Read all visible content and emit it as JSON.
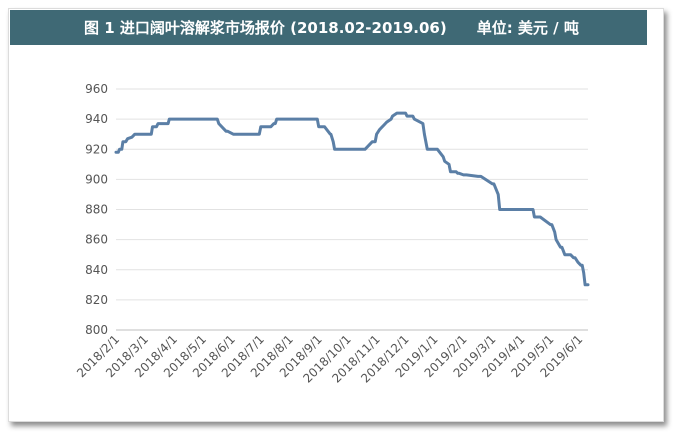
{
  "header": {
    "title": "图 1  进口阔叶溶解浆市场报价 (2018.02-2019.06)",
    "unit": "单位: 美元 / 吨"
  },
  "chart_data": {
    "type": "line",
    "title": "图 1  进口阔叶溶解浆市场报价 (2018.02-2019.06)",
    "ylabel": "单位: 美元 / 吨",
    "xlabel": "",
    "ylim": [
      800,
      960
    ],
    "yticks": [
      "800",
      "820",
      "840",
      "860",
      "880",
      "900",
      "920",
      "940",
      "960"
    ],
    "xticks": [
      "2018/2/1",
      "2018/3/1",
      "2018/4/1",
      "2018/5/1",
      "2018/6/1",
      "2018/7/1",
      "2018/8/1",
      "2018/9/1",
      "2018/10/1",
      "2018/11/1",
      "2018/12/1",
      "2019/1/1",
      "2019/2/1",
      "2019/3/1",
      "2019/4/1",
      "2019/5/1",
      "2019/6/1"
    ],
    "grid": true,
    "legend": "none",
    "line_color": "#5b7fa6",
    "series": [
      {
        "x": [
          0.0,
          0.08,
          0.12,
          0.2,
          0.24,
          0.34,
          0.4,
          0.55,
          0.65,
          0.73,
          0.8,
          1.0,
          1.15,
          1.22,
          1.26,
          1.4,
          1.45,
          1.8,
          1.84,
          1.95,
          2.0,
          2.5,
          2.55,
          2.6,
          2.65,
          2.9,
          2.95,
          3.0,
          3.2,
          3.25,
          3.5,
          3.55,
          3.8,
          3.85,
          4.05,
          4.1,
          4.4,
          4.5,
          4.95,
          5.0,
          5.2,
          5.3,
          5.35,
          5.45,
          5.5,
          5.55,
          6.2,
          6.25,
          6.3,
          6.5,
          6.55,
          6.6,
          6.65,
          6.95,
          7.0,
          7.15,
          7.2,
          7.4,
          7.42,
          7.5,
          7.55,
          7.6,
          7.7,
          7.75,
          7.8,
          7.85,
          8.0,
          8.05,
          8.1,
          8.2,
          8.3,
          8.4,
          8.5,
          8.55,
          8.6,
          8.85,
          8.9,
          8.95,
          9.0,
          9.1,
          9.3,
          9.35,
          9.5,
          9.55,
          9.7,
          9.75,
          9.8,
          9.85,
          10.0,
          10.05,
          10.25,
          10.3,
          10.6,
          10.65,
          10.75,
          10.85,
          10.9,
          11.0,
          11.1,
          11.3,
          11.35,
          11.5,
          11.55,
          11.7,
          11.75,
          11.8,
          11.85,
          12.0,
          12.1,
          12.5,
          12.6,
          13.0,
          13.05,
          13.2,
          13.25,
          13.5,
          13.55,
          13.62,
          13.65,
          13.7,
          13.75,
          13.8,
          14.0,
          14.05,
          14.4,
          14.45,
          14.6,
          14.65,
          15.0,
          15.05,
          15.15,
          15.2,
          15.35,
          15.4,
          15.5,
          15.55,
          15.65,
          15.7,
          15.8,
          15.85,
          15.95,
          16.05,
          16.1,
          16.15,
          16.2,
          16.3
        ],
        "values": [
          918,
          918,
          920,
          920,
          925,
          925,
          927,
          928,
          930,
          930,
          930,
          930,
          930,
          930,
          935,
          935,
          937,
          937,
          940,
          940,
          940,
          940,
          940,
          940,
          940,
          940,
          940,
          940,
          940,
          940,
          940,
          937,
          932,
          932,
          930,
          930,
          930,
          930,
          930,
          935,
          935,
          935,
          935,
          937,
          937,
          940,
          940,
          940,
          940,
          940,
          940,
          940,
          940,
          940,
          935,
          935,
          935,
          930,
          930,
          925,
          920,
          920,
          920,
          920,
          920,
          920,
          920,
          920,
          920,
          920,
          920,
          920,
          920,
          920,
          920,
          925,
          925,
          925,
          930,
          933,
          937,
          938,
          940,
          942,
          944,
          944,
          944,
          944,
          944,
          942,
          942,
          940,
          937,
          930,
          920,
          920,
          920,
          920,
          920,
          915,
          912,
          910,
          905,
          905,
          905,
          904,
          904,
          903,
          903,
          902,
          902,
          897,
          897,
          890,
          880,
          880,
          880,
          880,
          880,
          880,
          880,
          880,
          880,
          880,
          880,
          875,
          875,
          875,
          870,
          870,
          865,
          860,
          855,
          855,
          850,
          850,
          850,
          850,
          848,
          848,
          845,
          843,
          843,
          838,
          830,
          830
        ]
      }
    ]
  }
}
